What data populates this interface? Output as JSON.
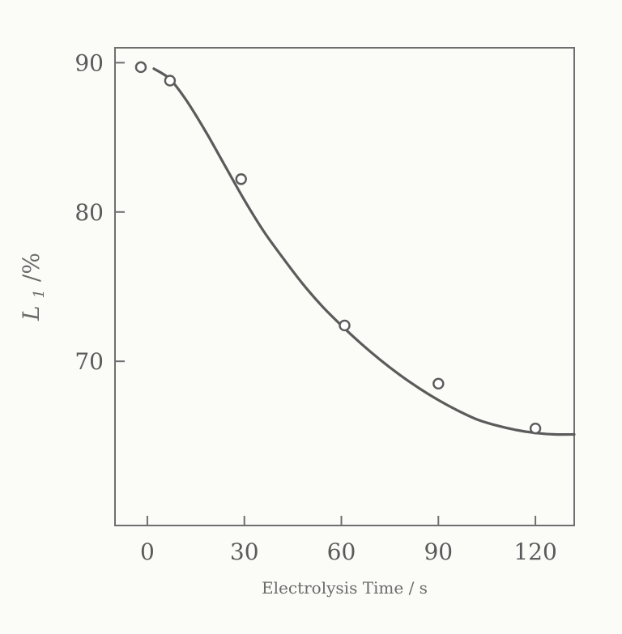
{
  "chart_data": {
    "type": "scatter",
    "title": "",
    "xlabel": "Electrolysis Time / s",
    "ylabel_main": "L",
    "ylabel_sub": "1",
    "ylabel_suffix": "/%",
    "xlim": [
      -10,
      132
    ],
    "ylim": [
      59,
      91
    ],
    "xticks": [
      0,
      30,
      60,
      90,
      120
    ],
    "xtick_labels": [
      "0",
      "30",
      "60",
      "90",
      "120"
    ],
    "yticks": [
      70,
      80,
      90
    ],
    "ytick_labels": [
      "70",
      "80",
      "90"
    ],
    "grid": false,
    "legend": "none",
    "colors": {
      "line": "#5b5b5b",
      "marker_stroke": "#5b5b5b",
      "marker_fill": "#ffffff",
      "axis": "#6f6f6f",
      "text": "#5a5a5a"
    },
    "series": [
      {
        "kind": "points",
        "x": [
          -2,
          7,
          29,
          61,
          90,
          120
        ],
        "y": [
          89.7,
          88.8,
          82.2,
          72.4,
          68.5,
          65.5
        ]
      },
      {
        "kind": "fitted-curve",
        "x": [
          2,
          7,
          12,
          18,
          24,
          30,
          36,
          42,
          48,
          54,
          60,
          66,
          72,
          78,
          84,
          90,
          96,
          102,
          108,
          114,
          120,
          126,
          132
        ],
        "y": [
          89.6,
          88.9,
          87.5,
          85.4,
          83.1,
          80.8,
          78.7,
          76.9,
          75.2,
          73.7,
          72.4,
          71.2,
          70.1,
          69.1,
          68.2,
          67.4,
          66.7,
          66.1,
          65.7,
          65.4,
          65.2,
          65.1,
          65.1
        ]
      }
    ]
  }
}
